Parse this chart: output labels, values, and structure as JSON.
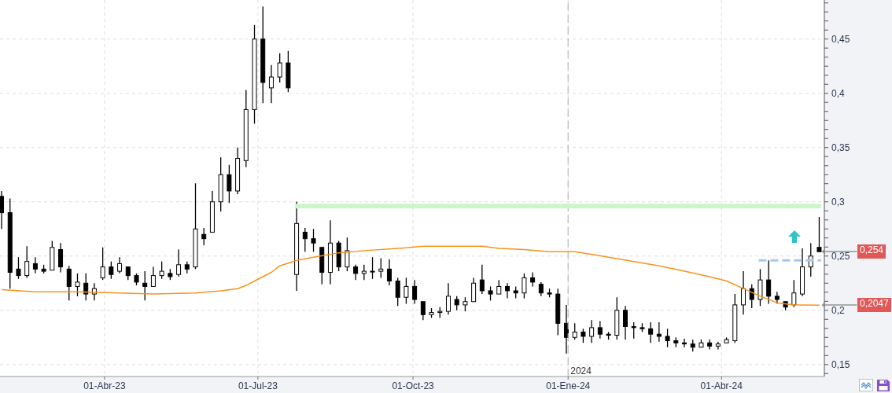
{
  "chart_data": {
    "type": "candlestick",
    "color": "#000000",
    "x": [
      "2023-01-30",
      "2023-02-04",
      "2023-02-09",
      "2023-02-14",
      "2023-02-19",
      "2023-02-24",
      "2023-03-01",
      "2023-03-06",
      "2023-03-11",
      "2023-03-16",
      "2023-03-21",
      "2023-03-26",
      "2023-03-31",
      "2023-04-05",
      "2023-04-10",
      "2023-04-15",
      "2023-04-20",
      "2023-04-25",
      "2023-04-30",
      "2023-05-05",
      "2023-05-10",
      "2023-05-15",
      "2023-05-20",
      "2023-05-25",
      "2023-05-30",
      "2023-06-04",
      "2023-06-09",
      "2023-06-14",
      "2023-06-19",
      "2023-06-24",
      "2023-06-29",
      "2023-07-04",
      "2023-07-09",
      "2023-07-14",
      "2023-07-19",
      "2023-07-24",
      "2023-07-29",
      "2023-08-03",
      "2023-08-08",
      "2023-08-13",
      "2023-08-18",
      "2023-08-23",
      "2023-08-28",
      "2023-09-02",
      "2023-09-07",
      "2023-09-12",
      "2023-09-17",
      "2023-09-22",
      "2023-09-27",
      "2023-10-02",
      "2023-10-07",
      "2023-10-12",
      "2023-10-17",
      "2023-10-22",
      "2023-10-27",
      "2023-11-01",
      "2023-11-06",
      "2023-11-11",
      "2023-11-16",
      "2023-11-21",
      "2023-11-26",
      "2023-12-01",
      "2023-12-06",
      "2023-12-11",
      "2023-12-16",
      "2023-12-21",
      "2023-12-26",
      "2023-12-31",
      "2024-01-05",
      "2024-01-10",
      "2024-01-15",
      "2024-01-20",
      "2024-01-25",
      "2024-01-30",
      "2024-02-04",
      "2024-02-09",
      "2024-02-14",
      "2024-02-19",
      "2024-02-24",
      "2024-02-29",
      "2024-03-05",
      "2024-03-10",
      "2024-03-15",
      "2024-03-20",
      "2024-03-25",
      "2024-03-30",
      "2024-04-04",
      "2024-04-09",
      "2024-04-14",
      "2024-04-19",
      "2024-04-24",
      "2024-04-29",
      "2024-05-04",
      "2024-05-09",
      "2024-05-14",
      "2024-05-19",
      "2024-05-24",
      "2024-05-29"
    ],
    "ohlc": [
      [
        0.305,
        0.31,
        0.275,
        0.29
      ],
      [
        0.29,
        0.303,
        0.22,
        0.235
      ],
      [
        0.238,
        0.249,
        0.229,
        0.232
      ],
      [
        0.232,
        0.259,
        0.23,
        0.245
      ],
      [
        0.243,
        0.249,
        0.234,
        0.238
      ],
      [
        0.238,
        0.242,
        0.234,
        0.236
      ],
      [
        0.237,
        0.264,
        0.236,
        0.258
      ],
      [
        0.256,
        0.262,
        0.235,
        0.24
      ],
      [
        0.238,
        0.241,
        0.209,
        0.222
      ],
      [
        0.222,
        0.234,
        0.213,
        0.226
      ],
      [
        0.225,
        0.234,
        0.209,
        0.215
      ],
      [
        0.215,
        0.225,
        0.209,
        0.22
      ],
      [
        0.23,
        0.258,
        0.228,
        0.24
      ],
      [
        0.24,
        0.245,
        0.229,
        0.233
      ],
      [
        0.236,
        0.249,
        0.234,
        0.243
      ],
      [
        0.24,
        0.241,
        0.228,
        0.232
      ],
      [
        0.232,
        0.234,
        0.223,
        0.226
      ],
      [
        0.225,
        0.236,
        0.209,
        0.222
      ],
      [
        0.222,
        0.24,
        0.221,
        0.232
      ],
      [
        0.232,
        0.245,
        0.229,
        0.236
      ],
      [
        0.234,
        0.238,
        0.228,
        0.231
      ],
      [
        0.233,
        0.256,
        0.231,
        0.242
      ],
      [
        0.242,
        0.245,
        0.234,
        0.238
      ],
      [
        0.24,
        0.317,
        0.238,
        0.275
      ],
      [
        0.27,
        0.276,
        0.26,
        0.266
      ],
      [
        0.272,
        0.31,
        0.271,
        0.3
      ],
      [
        0.3,
        0.341,
        0.291,
        0.325
      ],
      [
        0.325,
        0.334,
        0.299,
        0.31
      ],
      [
        0.31,
        0.35,
        0.307,
        0.34
      ],
      [
        0.338,
        0.403,
        0.332,
        0.385
      ],
      [
        0.385,
        0.463,
        0.372,
        0.45
      ],
      [
        0.45,
        0.48,
        0.391,
        0.41
      ],
      [
        0.405,
        0.426,
        0.391,
        0.415
      ],
      [
        0.415,
        0.437,
        0.41,
        0.428
      ],
      [
        0.428,
        0.439,
        0.401,
        0.405
      ],
      [
        0.233,
        0.3,
        0.218,
        0.28
      ],
      [
        0.272,
        0.276,
        0.254,
        0.266
      ],
      [
        0.266,
        0.275,
        0.254,
        0.262
      ],
      [
        0.258,
        0.259,
        0.224,
        0.235
      ],
      [
        0.235,
        0.283,
        0.224,
        0.262
      ],
      [
        0.262,
        0.264,
        0.236,
        0.24
      ],
      [
        0.24,
        0.267,
        0.236,
        0.255
      ],
      [
        0.24,
        0.242,
        0.228,
        0.234
      ],
      [
        0.234,
        0.242,
        0.228,
        0.236
      ],
      [
        0.236,
        0.249,
        0.229,
        0.236
      ],
      [
        0.236,
        0.248,
        0.23,
        0.238
      ],
      [
        0.238,
        0.247,
        0.223,
        0.227
      ],
      [
        0.227,
        0.23,
        0.204,
        0.212
      ],
      [
        0.212,
        0.23,
        0.206,
        0.222
      ],
      [
        0.222,
        0.228,
        0.206,
        0.21
      ],
      [
        0.208,
        0.209,
        0.191,
        0.196
      ],
      [
        0.196,
        0.202,
        0.193,
        0.198
      ],
      [
        0.198,
        0.203,
        0.193,
        0.199
      ],
      [
        0.199,
        0.225,
        0.196,
        0.213
      ],
      [
        0.21,
        0.213,
        0.2,
        0.205
      ],
      [
        0.205,
        0.212,
        0.199,
        0.208
      ],
      [
        0.208,
        0.23,
        0.207,
        0.225
      ],
      [
        0.228,
        0.242,
        0.215,
        0.218
      ],
      [
        0.218,
        0.222,
        0.209,
        0.215
      ],
      [
        0.215,
        0.228,
        0.214,
        0.222
      ],
      [
        0.222,
        0.225,
        0.211,
        0.218
      ],
      [
        0.218,
        0.222,
        0.211,
        0.216
      ],
      [
        0.216,
        0.234,
        0.211,
        0.23
      ],
      [
        0.23,
        0.235,
        0.222,
        0.226
      ],
      [
        0.224,
        0.226,
        0.213,
        0.216
      ],
      [
        0.216,
        0.22,
        0.212,
        0.215
      ],
      [
        0.215,
        0.22,
        0.177,
        0.188
      ],
      [
        0.188,
        0.205,
        0.16,
        0.175
      ],
      [
        0.175,
        0.188,
        0.173,
        0.18
      ],
      [
        0.18,
        0.183,
        0.17,
        0.176
      ],
      [
        0.176,
        0.191,
        0.17,
        0.184
      ],
      [
        0.184,
        0.19,
        0.174,
        0.178
      ],
      [
        0.178,
        0.18,
        0.173,
        0.177
      ],
      [
        0.177,
        0.212,
        0.173,
        0.2
      ],
      [
        0.2,
        0.204,
        0.173,
        0.185
      ],
      [
        0.185,
        0.189,
        0.174,
        0.184
      ],
      [
        0.184,
        0.188,
        0.18,
        0.183
      ],
      [
        0.183,
        0.189,
        0.17,
        0.178
      ],
      [
        0.178,
        0.189,
        0.171,
        0.176
      ],
      [
        0.176,
        0.183,
        0.166,
        0.172
      ],
      [
        0.172,
        0.175,
        0.166,
        0.17
      ],
      [
        0.17,
        0.174,
        0.166,
        0.169
      ],
      [
        0.169,
        0.173,
        0.162,
        0.166
      ],
      [
        0.166,
        0.173,
        0.165,
        0.17
      ],
      [
        0.17,
        0.173,
        0.164,
        0.167
      ],
      [
        0.167,
        0.171,
        0.164,
        0.169
      ],
      [
        0.17,
        0.175,
        0.169,
        0.173
      ],
      [
        0.172,
        0.215,
        0.17,
        0.205
      ],
      [
        0.205,
        0.236,
        0.196,
        0.22
      ],
      [
        0.22,
        0.224,
        0.202,
        0.21
      ],
      [
        0.21,
        0.238,
        0.204,
        0.228
      ],
      [
        0.228,
        0.246,
        0.206,
        0.213
      ],
      [
        0.213,
        0.217,
        0.206,
        0.21
      ],
      [
        0.208,
        0.209,
        0.2,
        0.203
      ],
      [
        0.205,
        0.228,
        0.203,
        0.216
      ],
      [
        0.215,
        0.257,
        0.213,
        0.24
      ],
      [
        0.24,
        0.262,
        0.231,
        0.25
      ],
      [
        0.258,
        0.286,
        0.253,
        0.254
      ]
    ],
    "series": [
      {
        "type": "line",
        "color": "#f7931e",
        "x": [
          "2023-01-30",
          "2023-02-19",
          "2023-03-16",
          "2023-04-30",
          "2023-05-25",
          "2023-06-09",
          "2023-06-19",
          "2023-06-24",
          "2023-06-29",
          "2023-07-09",
          "2023-07-14",
          "2023-07-24",
          "2023-08-03",
          "2023-08-18",
          "2023-09-02",
          "2023-09-22",
          "2023-10-07",
          "2023-10-22",
          "2023-11-11",
          "2023-11-21",
          "2023-12-06",
          "2023-12-21",
          "2024-01-05",
          "2024-01-25",
          "2024-02-09",
          "2024-02-24",
          "2024-03-10",
          "2024-03-25",
          "2024-04-04",
          "2024-04-14",
          "2024-04-24",
          "2024-05-04",
          "2024-05-14",
          "2024-05-29"
        ],
        "values": [
          0.219,
          0.217,
          0.217,
          0.215,
          0.216,
          0.218,
          0.22,
          0.223,
          0.227,
          0.235,
          0.241,
          0.246,
          0.249,
          0.253,
          0.255,
          0.257,
          0.259,
          0.259,
          0.259,
          0.257,
          0.256,
          0.254,
          0.254,
          0.249,
          0.245,
          0.241,
          0.236,
          0.231,
          0.227,
          0.22,
          0.213,
          0.207,
          0.205,
          0.2047
        ]
      },
      {
        "type": "line",
        "color": "#c9f7c9",
        "x": [
          "2023-07-23",
          "2024-05-30"
        ],
        "values": [
          0.296,
          0.296
        ]
      },
      {
        "type": "line",
        "color": "#a6c8ef",
        "line_style": "dashed",
        "x": [
          "2024-04-23",
          "2024-05-30"
        ],
        "values": [
          0.246,
          0.246
        ]
      }
    ],
    "xlim": [
      "2023-01-29",
      "2024-06-01"
    ],
    "xticks": [
      {
        "value": "2023-04-01",
        "label": "01-Abr-23"
      },
      {
        "value": "2023-07-01",
        "label": "01-Jul-23"
      },
      {
        "value": "2023-10-01",
        "label": "01-Oct-23"
      },
      {
        "value": "2024-01-01",
        "label": "01-Ene-24"
      },
      {
        "value": "2024-04-01",
        "label": "01-Abr-24"
      }
    ],
    "ylim": [
      0.139,
      0.486
    ],
    "yticks": [
      {
        "value": 0.1417,
        "label": null
      },
      {
        "value": 0.15,
        "label": "0,15"
      },
      {
        "value": 0.1583,
        "label": null
      },
      {
        "value": 0.1667,
        "label": null
      },
      {
        "value": 0.175,
        "label": null
      },
      {
        "value": 0.1833,
        "label": null
      },
      {
        "value": 0.1917,
        "label": null
      },
      {
        "value": 0.2,
        "label": "0,2"
      },
      {
        "value": 0.2083,
        "label": null
      },
      {
        "value": 0.2167,
        "label": null
      },
      {
        "value": 0.225,
        "label": null
      },
      {
        "value": 0.2333,
        "label": null
      },
      {
        "value": 0.2417,
        "label": null
      },
      {
        "value": 0.25,
        "label": "0,25"
      },
      {
        "value": 0.2583,
        "label": null
      },
      {
        "value": 0.2667,
        "label": null
      },
      {
        "value": 0.275,
        "label": null
      },
      {
        "value": 0.2833,
        "label": null
      },
      {
        "value": 0.2917,
        "label": null
      },
      {
        "value": 0.3,
        "label": "0,3"
      },
      {
        "value": 0.3083,
        "label": null
      },
      {
        "value": 0.3167,
        "label": null
      },
      {
        "value": 0.325,
        "label": null
      },
      {
        "value": 0.3333,
        "label": null
      },
      {
        "value": 0.3417,
        "label": null
      },
      {
        "value": 0.35,
        "label": "0,35"
      },
      {
        "value": 0.3583,
        "label": null
      },
      {
        "value": 0.3667,
        "label": null
      },
      {
        "value": 0.375,
        "label": null
      },
      {
        "value": 0.3833,
        "label": null
      },
      {
        "value": 0.3917,
        "label": null
      },
      {
        "value": 0.4,
        "label": "0,4"
      },
      {
        "value": 0.4083,
        "label": null
      },
      {
        "value": 0.4167,
        "label": null
      },
      {
        "value": 0.425,
        "label": null
      },
      {
        "value": 0.4333,
        "label": null
      },
      {
        "value": 0.4417,
        "label": null
      },
      {
        "value": 0.45,
        "label": "0,45"
      },
      {
        "value": 0.4583,
        "label": null
      },
      {
        "value": 0.4667,
        "label": null
      },
      {
        "value": 0.475,
        "label": null
      },
      {
        "value": 0.4833,
        "label": null
      }
    ],
    "grid": true,
    "ref_lines": [
      {
        "axis": "x",
        "value": "2024-01-01",
        "label": "2024",
        "color": "#bdbdbd",
        "line_style": "dashed"
      }
    ],
    "annotations": [
      {
        "text": "0,254",
        "x": "2024-05-29",
        "y": 0.254
      },
      {
        "text": "0,2047",
        "x": "2024-05-29",
        "y": 0.2047
      }
    ]
  }
}
